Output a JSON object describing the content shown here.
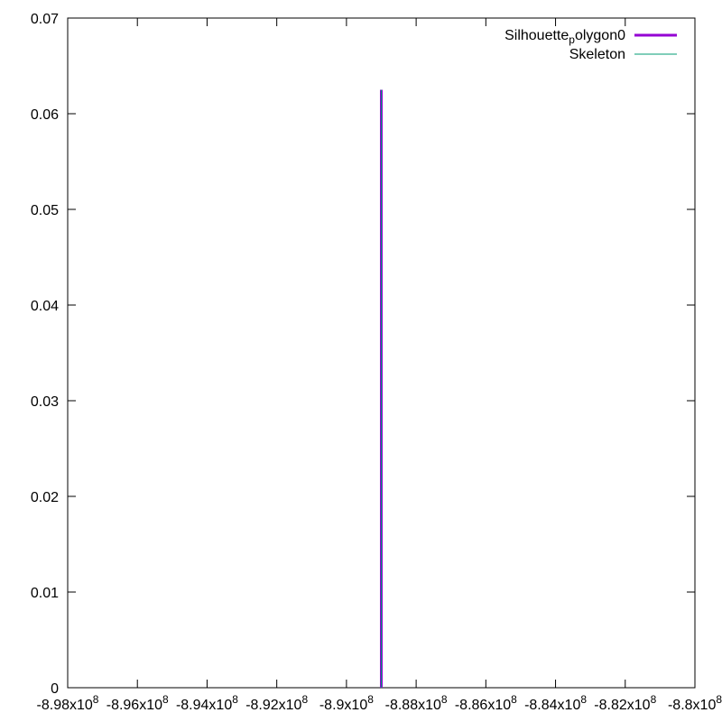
{
  "chart_data": {
    "type": "line",
    "title": "",
    "xlabel": "",
    "ylabel": "",
    "xlim": [
      -898000000,
      -880000000
    ],
    "ylim": [
      0,
      0.07
    ],
    "grid": false,
    "legend_position": "top-right",
    "x_ticks": [
      {
        "value": -898000000,
        "mantissa": "-8.98",
        "exponent": "8"
      },
      {
        "value": -896000000,
        "mantissa": "-8.96",
        "exponent": "8"
      },
      {
        "value": -894000000,
        "mantissa": "-8.94",
        "exponent": "8"
      },
      {
        "value": -892000000,
        "mantissa": "-8.92",
        "exponent": "8"
      },
      {
        "value": -890000000,
        "mantissa": "-8.9",
        "exponent": "8"
      },
      {
        "value": -888000000,
        "mantissa": "-8.88",
        "exponent": "8"
      },
      {
        "value": -886000000,
        "mantissa": "-8.86",
        "exponent": "8"
      },
      {
        "value": -884000000,
        "mantissa": "-8.84",
        "exponent": "8"
      },
      {
        "value": -882000000,
        "mantissa": "-8.82",
        "exponent": "8"
      },
      {
        "value": -880000000,
        "mantissa": "-8.8",
        "exponent": "8"
      }
    ],
    "y_ticks": [
      {
        "value": 0,
        "label": "0"
      },
      {
        "value": 0.01,
        "label": "0.01"
      },
      {
        "value": 0.02,
        "label": "0.02"
      },
      {
        "value": 0.03,
        "label": "0.03"
      },
      {
        "value": 0.04,
        "label": "0.04"
      },
      {
        "value": 0.05,
        "label": "0.05"
      },
      {
        "value": 0.06,
        "label": "0.06"
      },
      {
        "value": 0.07,
        "label": "0.07"
      }
    ],
    "series": [
      {
        "name_parts": {
          "base": "Silhouette",
          "sub": "p",
          "rest": "olygon0"
        },
        "color": "#9400d3",
        "line_width": 3,
        "points": [
          {
            "x": -889000000,
            "y": 0
          },
          {
            "x": -889000000,
            "y": 0.0625
          }
        ]
      },
      {
        "name_parts": {
          "base": "Skeleton",
          "sub": "",
          "rest": ""
        },
        "color": "#009e73",
        "line_width": 1,
        "points": [
          {
            "x": -889000000,
            "y": 0
          },
          {
            "x": -889000000,
            "y": 0.0625
          }
        ]
      }
    ]
  }
}
